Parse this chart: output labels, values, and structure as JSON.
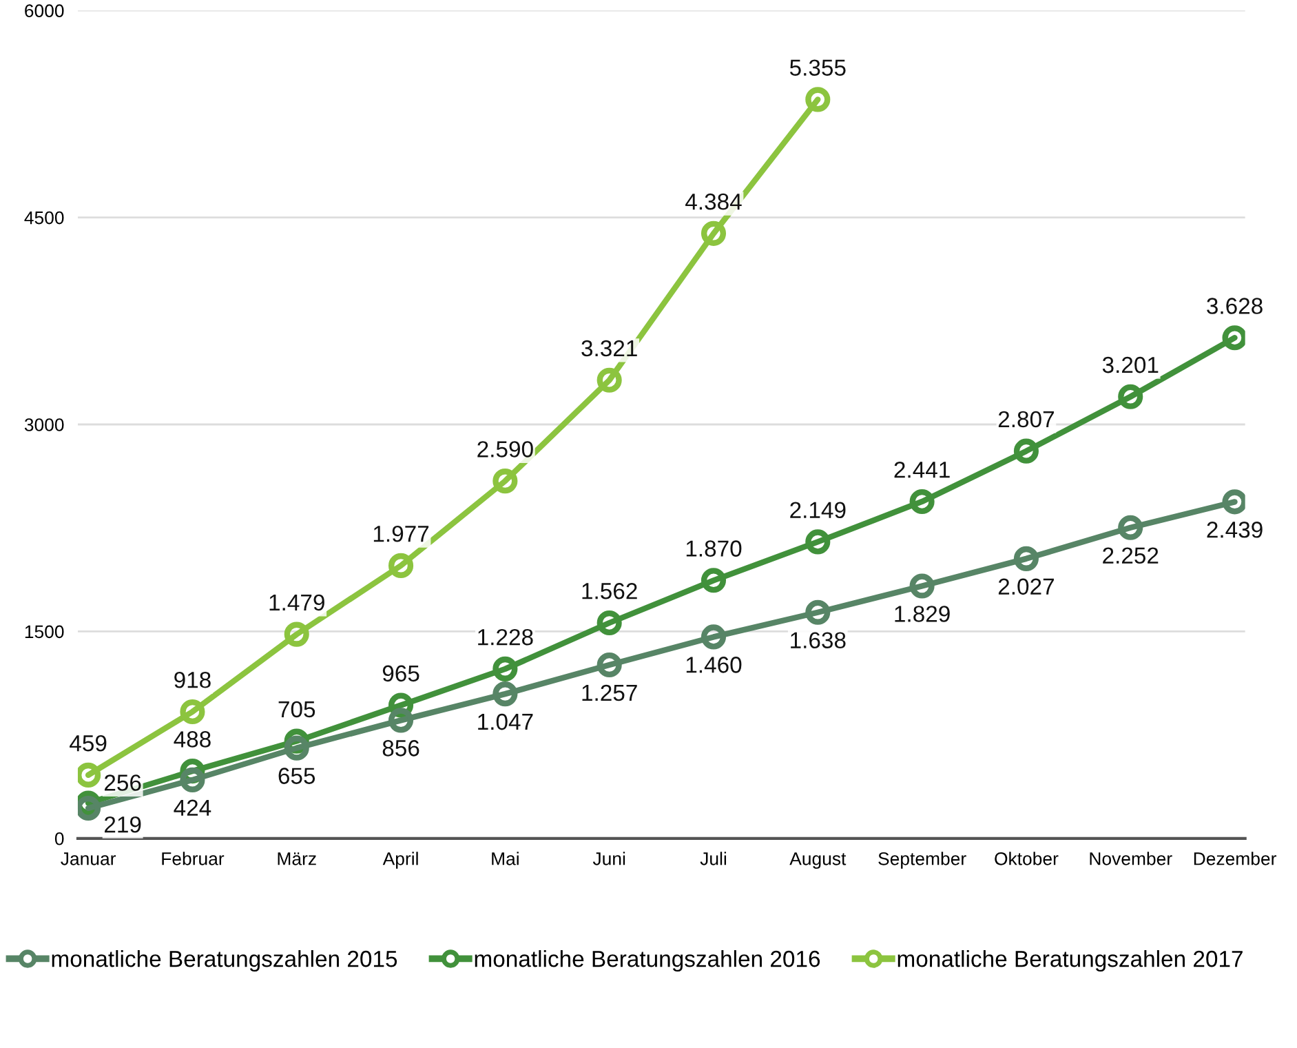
{
  "chart_data": {
    "type": "line",
    "categories": [
      "Januar",
      "Februar",
      "März",
      "April",
      "Mai",
      "Juni",
      "Juli",
      "August",
      "September",
      "Oktober",
      "November",
      "Dezember"
    ],
    "series": [
      {
        "name": "monatliche Beratungszahlen 2015",
        "color": "#578566",
        "values": [
          219,
          424,
          655,
          856,
          1047,
          1257,
          1460,
          1638,
          1829,
          2027,
          2252,
          2439
        ],
        "value_labels": [
          "219",
          "424",
          "655",
          "856",
          "1.047",
          "1.257",
          "1.460",
          "1.638",
          "1.829",
          "2.027",
          "2.252",
          "2.439"
        ]
      },
      {
        "name": "monatliche Beratungszahlen 2016",
        "color": "#41913b",
        "values": [
          256,
          488,
          705,
          965,
          1228,
          1562,
          1870,
          2149,
          2441,
          2807,
          3201,
          3628
        ],
        "value_labels": [
          "256",
          "488",
          "705",
          "965",
          "1.228",
          "1.562",
          "1.870",
          "2.149",
          "2.441",
          "2.807",
          "3.201",
          "3.628"
        ]
      },
      {
        "name": "monatliche Beratungszahlen 2017",
        "color": "#8cc43f",
        "values": [
          459,
          918,
          1479,
          1977,
          2590,
          3321,
          4384,
          5355,
          null,
          null,
          null,
          null
        ],
        "value_labels": [
          "459",
          "918",
          "1.479",
          "1.977",
          "2.590",
          "3.321",
          "4.384",
          "5.355",
          null,
          null,
          null,
          null
        ]
      }
    ],
    "ylim": [
      0,
      6000
    ],
    "yticks": [
      0,
      1500,
      3000,
      4500,
      6000
    ],
    "grid": "y",
    "legend": "bottom",
    "marker": "circle",
    "line_style": "solid"
  }
}
